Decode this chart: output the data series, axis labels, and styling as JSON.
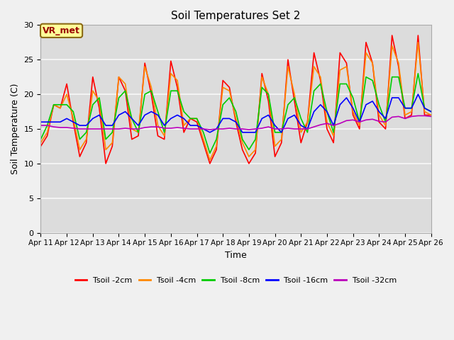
{
  "title": "Soil Temperatures Set 2",
  "xlabel": "Time",
  "ylabel": "Soil Temperature (C)",
  "xlim": [
    0,
    15
  ],
  "ylim": [
    0,
    30
  ],
  "yticks": [
    0,
    5,
    10,
    15,
    20,
    25,
    30
  ],
  "xtick_labels": [
    "Apr 11",
    "Apr 12",
    "Apr 13",
    "Apr 14",
    "Apr 15",
    "Apr 16",
    "Apr 17",
    "Apr 18",
    "Apr 19",
    "Apr 20",
    "Apr 21",
    "Apr 22",
    "Apr 23",
    "Apr 24",
    "Apr 25",
    "Apr 26"
  ],
  "annotation_text": "VR_met",
  "fig_bg": "#e8e8e8",
  "plot_bg": "#dcdcdc",
  "grid_color": "#f0f0f0",
  "series": {
    "Tsoil -2cm": {
      "color": "#ff0000",
      "lw": 1.2,
      "x": [
        0,
        0.25,
        0.5,
        0.75,
        1.0,
        1.25,
        1.5,
        1.75,
        2.0,
        2.25,
        2.5,
        2.75,
        3.0,
        3.25,
        3.5,
        3.75,
        4.0,
        4.25,
        4.5,
        4.75,
        5.0,
        5.25,
        5.5,
        5.75,
        6.0,
        6.25,
        6.5,
        6.75,
        7.0,
        7.25,
        7.5,
        7.75,
        8.0,
        8.25,
        8.5,
        8.75,
        9.0,
        9.25,
        9.5,
        9.75,
        10.0,
        10.25,
        10.5,
        10.75,
        11.0,
        11.25,
        11.5,
        11.75,
        12.0,
        12.25,
        12.5,
        12.75,
        13.0,
        13.25,
        13.5,
        13.75,
        14.0,
        14.25,
        14.5,
        14.75,
        15.0
      ],
      "y": [
        12.5,
        14.0,
        18.5,
        18.0,
        21.5,
        16.0,
        11.0,
        13.0,
        22.5,
        18.0,
        10.0,
        12.5,
        22.5,
        20.5,
        13.5,
        14.0,
        24.5,
        20.0,
        14.0,
        13.5,
        24.8,
        21.0,
        14.5,
        16.5,
        16.0,
        13.0,
        10.0,
        12.0,
        22.0,
        21.0,
        16.0,
        12.0,
        10.0,
        11.5,
        23.0,
        19.0,
        11.0,
        13.0,
        25.0,
        19.0,
        13.0,
        16.0,
        26.0,
        22.0,
        15.0,
        13.0,
        26.0,
        24.5,
        17.0,
        15.0,
        27.5,
        24.5,
        16.0,
        15.0,
        28.5,
        24.0,
        16.5,
        17.0,
        28.5,
        17.0,
        17.0
      ]
    },
    "Tsoil -4cm": {
      "color": "#ff8800",
      "lw": 1.2,
      "x": [
        0,
        0.25,
        0.5,
        0.75,
        1.0,
        1.25,
        1.5,
        1.75,
        2.0,
        2.25,
        2.5,
        2.75,
        3.0,
        3.25,
        3.5,
        3.75,
        4.0,
        4.25,
        4.5,
        4.75,
        5.0,
        5.25,
        5.5,
        5.75,
        6.0,
        6.25,
        6.5,
        6.75,
        7.0,
        7.25,
        7.5,
        7.75,
        8.0,
        8.25,
        8.5,
        8.75,
        9.0,
        9.25,
        9.5,
        9.75,
        10.0,
        10.25,
        10.5,
        10.75,
        11.0,
        11.25,
        11.5,
        11.75,
        12.0,
        12.25,
        12.5,
        12.75,
        13.0,
        13.25,
        13.5,
        13.75,
        14.0,
        14.25,
        14.5,
        14.75,
        15.0
      ],
      "y": [
        13.0,
        14.5,
        18.5,
        18.0,
        20.0,
        16.5,
        12.0,
        13.5,
        20.5,
        19.0,
        12.0,
        13.0,
        22.5,
        21.5,
        15.0,
        14.5,
        24.0,
        21.0,
        15.5,
        14.0,
        23.0,
        22.0,
        15.5,
        16.5,
        16.5,
        13.5,
        10.5,
        12.5,
        21.0,
        20.5,
        16.5,
        13.0,
        11.0,
        12.0,
        22.5,
        20.0,
        12.5,
        13.5,
        24.0,
        20.0,
        14.5,
        16.0,
        24.0,
        22.5,
        16.0,
        14.0,
        23.5,
        24.0,
        17.5,
        15.5,
        26.0,
        24.5,
        17.0,
        15.5,
        27.0,
        24.5,
        17.0,
        17.5,
        27.5,
        17.5,
        17.0
      ]
    },
    "Tsoil -8cm": {
      "color": "#00cc00",
      "lw": 1.2,
      "x": [
        0,
        0.25,
        0.5,
        0.75,
        1.0,
        1.25,
        1.5,
        1.75,
        2.0,
        2.25,
        2.5,
        2.75,
        3.0,
        3.25,
        3.5,
        3.75,
        4.0,
        4.25,
        4.5,
        4.75,
        5.0,
        5.25,
        5.5,
        5.75,
        6.0,
        6.25,
        6.5,
        6.75,
        7.0,
        7.25,
        7.5,
        7.75,
        8.0,
        8.25,
        8.5,
        8.75,
        9.0,
        9.25,
        9.5,
        9.75,
        10.0,
        10.25,
        10.5,
        10.75,
        11.0,
        11.25,
        11.5,
        11.75,
        12.0,
        12.25,
        12.5,
        12.75,
        13.0,
        13.25,
        13.5,
        13.75,
        14.0,
        14.25,
        14.5,
        14.75,
        15.0
      ],
      "y": [
        13.5,
        15.5,
        18.5,
        18.5,
        18.5,
        17.5,
        13.5,
        14.5,
        18.5,
        19.5,
        13.5,
        14.5,
        19.5,
        20.5,
        16.5,
        14.5,
        20.0,
        20.5,
        17.5,
        14.5,
        20.5,
        20.5,
        17.5,
        16.5,
        16.5,
        14.5,
        11.5,
        13.5,
        18.5,
        19.5,
        17.5,
        13.5,
        12.0,
        13.5,
        21.0,
        20.0,
        14.5,
        14.5,
        18.5,
        19.5,
        16.5,
        14.5,
        20.5,
        21.5,
        17.5,
        14.5,
        21.5,
        21.5,
        19.5,
        16.0,
        22.5,
        22.0,
        18.5,
        16.0,
        22.5,
        22.5,
        18.0,
        18.0,
        23.0,
        18.0,
        17.5
      ]
    },
    "Tsoil -16cm": {
      "color": "#0000ff",
      "lw": 1.2,
      "x": [
        0,
        0.25,
        0.5,
        0.75,
        1.0,
        1.25,
        1.5,
        1.75,
        2.0,
        2.25,
        2.5,
        2.75,
        3.0,
        3.25,
        3.5,
        3.75,
        4.0,
        4.25,
        4.5,
        4.75,
        5.0,
        5.25,
        5.5,
        5.75,
        6.0,
        6.25,
        6.5,
        6.75,
        7.0,
        7.25,
        7.5,
        7.75,
        8.0,
        8.25,
        8.5,
        8.75,
        9.0,
        9.25,
        9.5,
        9.75,
        10.0,
        10.25,
        10.5,
        10.75,
        11.0,
        11.25,
        11.5,
        11.75,
        12.0,
        12.25,
        12.5,
        12.75,
        13.0,
        13.25,
        13.5,
        13.75,
        14.0,
        14.25,
        14.5,
        14.75,
        15.0
      ],
      "y": [
        16.0,
        16.0,
        16.0,
        16.0,
        16.5,
        16.0,
        15.5,
        15.5,
        16.5,
        17.0,
        15.5,
        15.5,
        17.0,
        17.5,
        16.5,
        15.5,
        17.0,
        17.5,
        17.0,
        15.5,
        16.5,
        17.0,
        16.5,
        15.5,
        15.5,
        15.0,
        14.5,
        15.0,
        16.5,
        16.5,
        16.0,
        14.5,
        14.5,
        14.5,
        16.5,
        17.0,
        15.5,
        14.5,
        16.5,
        17.0,
        15.5,
        15.0,
        17.5,
        18.5,
        17.5,
        15.5,
        18.5,
        19.5,
        18.0,
        16.0,
        18.5,
        19.0,
        17.5,
        16.5,
        19.5,
        19.5,
        18.0,
        18.0,
        20.0,
        18.0,
        17.5
      ]
    },
    "Tsoil -32cm": {
      "color": "#bb00bb",
      "lw": 1.2,
      "x": [
        0,
        0.25,
        0.5,
        0.75,
        1.0,
        1.25,
        1.5,
        1.75,
        2.0,
        2.25,
        2.5,
        2.75,
        3.0,
        3.25,
        3.5,
        3.75,
        4.0,
        4.25,
        4.5,
        4.75,
        5.0,
        5.25,
        5.5,
        5.75,
        6.0,
        6.25,
        6.5,
        6.75,
        7.0,
        7.25,
        7.5,
        7.75,
        8.0,
        8.25,
        8.5,
        8.75,
        9.0,
        9.25,
        9.5,
        9.75,
        10.0,
        10.25,
        10.5,
        10.75,
        11.0,
        11.25,
        11.5,
        11.75,
        12.0,
        12.25,
        12.5,
        12.75,
        13.0,
        13.25,
        13.5,
        13.75,
        14.0,
        14.25,
        14.5,
        14.75,
        15.0
      ],
      "y": [
        15.5,
        15.5,
        15.3,
        15.2,
        15.2,
        15.1,
        15.0,
        15.0,
        15.0,
        15.0,
        15.0,
        15.0,
        15.0,
        15.1,
        15.0,
        15.0,
        15.2,
        15.3,
        15.3,
        15.1,
        15.1,
        15.2,
        15.1,
        15.0,
        15.0,
        15.0,
        14.9,
        15.0,
        15.0,
        15.1,
        15.0,
        15.0,
        14.9,
        15.0,
        15.1,
        15.3,
        15.0,
        15.0,
        15.1,
        15.0,
        15.0,
        15.0,
        15.3,
        15.6,
        15.8,
        15.5,
        15.8,
        16.2,
        16.3,
        16.0,
        16.3,
        16.4,
        16.1,
        16.0,
        16.7,
        16.8,
        16.5,
        16.8,
        16.9,
        16.9,
        16.8
      ]
    }
  }
}
